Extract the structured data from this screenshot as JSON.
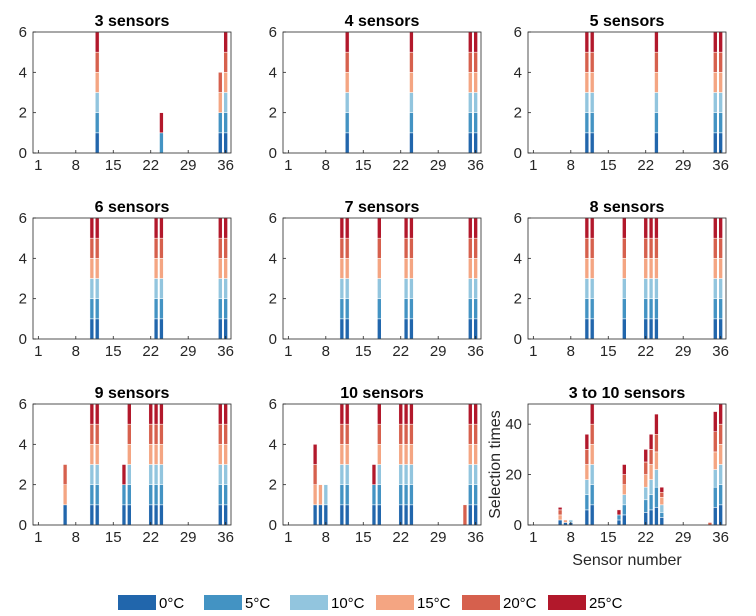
{
  "colors": {
    "0°C": "#2166ac",
    "5°C": "#4393c3",
    "10°C": "#92c5de",
    "15°C": "#f4a582",
    "20°C": "#d6604d",
    "25°C": "#b2182b",
    "frame": "#262626"
  },
  "legend": {
    "placement": "bottom",
    "entries": [
      "0°C",
      "5°C",
      "10°C",
      "15°C",
      "20°C",
      "25°C"
    ]
  },
  "chart_data": [
    {
      "type": "bar",
      "stacked": true,
      "title": "3 sensors",
      "xlabel": "",
      "ylabel": "",
      "xticks": [
        "1",
        "8",
        "15",
        "22",
        "29",
        "36"
      ],
      "yticks": [
        "0",
        "2",
        "4",
        "6"
      ],
      "xlim": [
        0,
        37
      ],
      "ylim": [
        0,
        6
      ],
      "grid": false,
      "series_names": [
        "0°C",
        "5°C",
        "10°C",
        "15°C",
        "20°C",
        "25°C"
      ],
      "bars": [
        {
          "x": 12,
          "values": [
            1,
            1,
            1,
            1,
            1,
            1
          ]
        },
        {
          "x": 24,
          "values": [
            0,
            1,
            0,
            0,
            0,
            1
          ]
        },
        {
          "x": 35,
          "values": [
            1,
            1,
            0,
            1,
            1,
            0
          ]
        },
        {
          "x": 36,
          "values": [
            1,
            1,
            1,
            1,
            1,
            1
          ]
        }
      ]
    },
    {
      "type": "bar",
      "stacked": true,
      "title": "4 sensors",
      "xlabel": "",
      "ylabel": "",
      "xticks": [
        "1",
        "8",
        "15",
        "22",
        "29",
        "36"
      ],
      "yticks": [
        "0",
        "2",
        "4",
        "6"
      ],
      "xlim": [
        0,
        37
      ],
      "ylim": [
        0,
        6
      ],
      "grid": false,
      "series_names": [
        "0°C",
        "5°C",
        "10°C",
        "15°C",
        "20°C",
        "25°C"
      ],
      "bars": [
        {
          "x": 12,
          "values": [
            1,
            1,
            1,
            1,
            1,
            1
          ]
        },
        {
          "x": 24,
          "values": [
            1,
            1,
            1,
            1,
            1,
            1
          ]
        },
        {
          "x": 35,
          "values": [
            1,
            1,
            1,
            1,
            1,
            1
          ]
        },
        {
          "x": 36,
          "values": [
            1,
            1,
            1,
            1,
            1,
            1
          ]
        }
      ]
    },
    {
      "type": "bar",
      "stacked": true,
      "title": "5 sensors",
      "xlabel": "",
      "ylabel": "",
      "xticks": [
        "1",
        "8",
        "15",
        "22",
        "29",
        "36"
      ],
      "yticks": [
        "0",
        "2",
        "4",
        "6"
      ],
      "xlim": [
        0,
        37
      ],
      "ylim": [
        0,
        6
      ],
      "grid": false,
      "series_names": [
        "0°C",
        "5°C",
        "10°C",
        "15°C",
        "20°C",
        "25°C"
      ],
      "bars": [
        {
          "x": 11,
          "values": [
            1,
            1,
            1,
            1,
            1,
            1
          ]
        },
        {
          "x": 12,
          "values": [
            1,
            1,
            1,
            1,
            1,
            1
          ]
        },
        {
          "x": 24,
          "values": [
            1,
            1,
            1,
            1,
            1,
            1
          ]
        },
        {
          "x": 35,
          "values": [
            1,
            1,
            1,
            1,
            1,
            1
          ]
        },
        {
          "x": 36,
          "values": [
            1,
            1,
            1,
            1,
            1,
            1
          ]
        }
      ]
    },
    {
      "type": "bar",
      "stacked": true,
      "title": "6 sensors",
      "xlabel": "",
      "ylabel": "",
      "xticks": [
        "1",
        "8",
        "15",
        "22",
        "29",
        "36"
      ],
      "yticks": [
        "0",
        "2",
        "4",
        "6"
      ],
      "xlim": [
        0,
        37
      ],
      "ylim": [
        0,
        6
      ],
      "grid": false,
      "series_names": [
        "0°C",
        "5°C",
        "10°C",
        "15°C",
        "20°C",
        "25°C"
      ],
      "bars": [
        {
          "x": 11,
          "values": [
            1,
            1,
            1,
            1,
            1,
            1
          ]
        },
        {
          "x": 12,
          "values": [
            1,
            1,
            1,
            1,
            1,
            1
          ]
        },
        {
          "x": 23,
          "values": [
            1,
            1,
            1,
            1,
            1,
            1
          ]
        },
        {
          "x": 24,
          "values": [
            1,
            1,
            1,
            1,
            1,
            1
          ]
        },
        {
          "x": 35,
          "values": [
            1,
            1,
            1,
            1,
            1,
            1
          ]
        },
        {
          "x": 36,
          "values": [
            1,
            1,
            1,
            1,
            1,
            1
          ]
        }
      ]
    },
    {
      "type": "bar",
      "stacked": true,
      "title": "7 sensors",
      "xlabel": "",
      "ylabel": "",
      "xticks": [
        "1",
        "8",
        "15",
        "22",
        "29",
        "36"
      ],
      "yticks": [
        "0",
        "2",
        "4",
        "6"
      ],
      "xlim": [
        0,
        37
      ],
      "ylim": [
        0,
        6
      ],
      "grid": false,
      "series_names": [
        "0°C",
        "5°C",
        "10°C",
        "15°C",
        "20°C",
        "25°C"
      ],
      "bars": [
        {
          "x": 11,
          "values": [
            1,
            1,
            1,
            1,
            1,
            1
          ]
        },
        {
          "x": 12,
          "values": [
            1,
            1,
            1,
            1,
            1,
            1
          ]
        },
        {
          "x": 18,
          "values": [
            1,
            1,
            1,
            1,
            1,
            1
          ]
        },
        {
          "x": 23,
          "values": [
            1,
            1,
            1,
            1,
            1,
            1
          ]
        },
        {
          "x": 24,
          "values": [
            1,
            1,
            1,
            1,
            1,
            1
          ]
        },
        {
          "x": 35,
          "values": [
            1,
            1,
            1,
            1,
            1,
            1
          ]
        },
        {
          "x": 36,
          "values": [
            1,
            1,
            1,
            1,
            1,
            1
          ]
        }
      ]
    },
    {
      "type": "bar",
      "stacked": true,
      "title": "8 sensors",
      "xlabel": "",
      "ylabel": "",
      "xticks": [
        "1",
        "8",
        "15",
        "22",
        "29",
        "36"
      ],
      "yticks": [
        "0",
        "2",
        "4",
        "6"
      ],
      "xlim": [
        0,
        37
      ],
      "ylim": [
        0,
        6
      ],
      "grid": false,
      "series_names": [
        "0°C",
        "5°C",
        "10°C",
        "15°C",
        "20°C",
        "25°C"
      ],
      "bars": [
        {
          "x": 11,
          "values": [
            1,
            1,
            1,
            1,
            1,
            1
          ]
        },
        {
          "x": 12,
          "values": [
            1,
            1,
            1,
            1,
            1,
            1
          ]
        },
        {
          "x": 18,
          "values": [
            1,
            1,
            1,
            1,
            1,
            1
          ]
        },
        {
          "x": 22,
          "values": [
            1,
            1,
            1,
            1,
            1,
            1
          ]
        },
        {
          "x": 23,
          "values": [
            1,
            1,
            1,
            1,
            1,
            1
          ]
        },
        {
          "x": 24,
          "values": [
            1,
            1,
            1,
            1,
            1,
            1
          ]
        },
        {
          "x": 35,
          "values": [
            1,
            1,
            1,
            1,
            1,
            1
          ]
        },
        {
          "x": 36,
          "values": [
            1,
            1,
            1,
            1,
            1,
            1
          ]
        }
      ]
    },
    {
      "type": "bar",
      "stacked": true,
      "title": "9 sensors",
      "xlabel": "",
      "ylabel": "",
      "xticks": [
        "1",
        "8",
        "15",
        "22",
        "29",
        "36"
      ],
      "yticks": [
        "0",
        "2",
        "4",
        "6"
      ],
      "xlim": [
        0,
        37
      ],
      "ylim": [
        0,
        6
      ],
      "grid": false,
      "series_names": [
        "0°C",
        "5°C",
        "10°C",
        "15°C",
        "20°C",
        "25°C"
      ],
      "bars": [
        {
          "x": 6,
          "values": [
            1,
            0,
            0,
            1,
            1,
            0
          ]
        },
        {
          "x": 11,
          "values": [
            1,
            1,
            1,
            1,
            1,
            1
          ]
        },
        {
          "x": 12,
          "values": [
            1,
            1,
            1,
            1,
            1,
            1
          ]
        },
        {
          "x": 17,
          "values": [
            1,
            1,
            0,
            0,
            0,
            1
          ]
        },
        {
          "x": 18,
          "values": [
            1,
            1,
            1,
            1,
            1,
            1
          ]
        },
        {
          "x": 22,
          "values": [
            1,
            1,
            1,
            1,
            1,
            1
          ]
        },
        {
          "x": 23,
          "values": [
            1,
            1,
            1,
            1,
            1,
            1
          ]
        },
        {
          "x": 24,
          "values": [
            1,
            1,
            1,
            1,
            1,
            1
          ]
        },
        {
          "x": 35,
          "values": [
            1,
            1,
            1,
            1,
            1,
            1
          ]
        },
        {
          "x": 36,
          "values": [
            1,
            1,
            1,
            1,
            1,
            1
          ]
        }
      ]
    },
    {
      "type": "bar",
      "stacked": true,
      "title": "10 sensors",
      "xlabel": "",
      "ylabel": "",
      "xticks": [
        "1",
        "8",
        "15",
        "22",
        "29",
        "36"
      ],
      "yticks": [
        "0",
        "2",
        "4",
        "6"
      ],
      "xlim": [
        0,
        37
      ],
      "ylim": [
        0,
        6
      ],
      "grid": false,
      "series_names": [
        "0°C",
        "5°C",
        "10°C",
        "15°C",
        "20°C",
        "25°C"
      ],
      "bars": [
        {
          "x": 6,
          "values": [
            1,
            0,
            0,
            1,
            1,
            1
          ]
        },
        {
          "x": 7,
          "values": [
            1,
            0,
            0,
            1,
            0,
            0
          ]
        },
        {
          "x": 8,
          "values": [
            1,
            0,
            1,
            0,
            0,
            0
          ]
        },
        {
          "x": 11,
          "values": [
            1,
            1,
            1,
            1,
            1,
            1
          ]
        },
        {
          "x": 12,
          "values": [
            1,
            1,
            1,
            1,
            1,
            1
          ]
        },
        {
          "x": 17,
          "values": [
            1,
            1,
            0,
            0,
            0,
            1
          ]
        },
        {
          "x": 18,
          "values": [
            1,
            1,
            1,
            1,
            1,
            1
          ]
        },
        {
          "x": 22,
          "values": [
            1,
            1,
            1,
            1,
            1,
            1
          ]
        },
        {
          "x": 23,
          "values": [
            1,
            1,
            1,
            1,
            1,
            1
          ]
        },
        {
          "x": 24,
          "values": [
            1,
            1,
            1,
            1,
            1,
            1
          ]
        },
        {
          "x": 34,
          "values": [
            0,
            0,
            0,
            0,
            1,
            0
          ]
        },
        {
          "x": 35,
          "values": [
            1,
            1,
            1,
            1,
            1,
            1
          ]
        },
        {
          "x": 36,
          "values": [
            1,
            1,
            1,
            1,
            1,
            1
          ]
        }
      ]
    },
    {
      "type": "bar",
      "stacked": true,
      "title": "3 to 10 sensors",
      "xlabel": "Sensor number",
      "ylabel": "Selection times",
      "xticks": [
        "1",
        "8",
        "15",
        "22",
        "29",
        "36"
      ],
      "yticks": [
        "0",
        "20",
        "40"
      ],
      "xlim": [
        0,
        37
      ],
      "ylim": [
        0,
        48
      ],
      "grid": false,
      "series_names": [
        "0°C",
        "5°C",
        "10°C",
        "15°C",
        "20°C",
        "25°C"
      ],
      "bars": [
        {
          "x": 6,
          "values": [
            2,
            0,
            0,
            2,
            2,
            1
          ]
        },
        {
          "x": 7,
          "values": [
            1,
            0,
            0,
            1,
            0,
            0
          ]
        },
        {
          "x": 8,
          "values": [
            1,
            0,
            1,
            0,
            0,
            0
          ]
        },
        {
          "x": 11,
          "values": [
            6,
            6,
            6,
            6,
            6,
            6
          ]
        },
        {
          "x": 12,
          "values": [
            8,
            8,
            8,
            8,
            8,
            8
          ]
        },
        {
          "x": 17,
          "values": [
            2,
            2,
            0,
            0,
            0,
            2
          ]
        },
        {
          "x": 18,
          "values": [
            4,
            4,
            4,
            4,
            4,
            4
          ]
        },
        {
          "x": 22,
          "values": [
            5,
            5,
            5,
            5,
            5,
            5
          ]
        },
        {
          "x": 23,
          "values": [
            6,
            6,
            6,
            6,
            6,
            6
          ]
        },
        {
          "x": 24,
          "values": [
            7,
            8,
            7,
            7,
            7,
            8
          ]
        },
        {
          "x": 25,
          "values": [
            3,
            2,
            3,
            3,
            2,
            2
          ]
        },
        {
          "x": 34,
          "values": [
            0,
            0,
            0,
            0,
            1,
            0
          ]
        },
        {
          "x": 35,
          "values": [
            7,
            8,
            7,
            7,
            8,
            8
          ]
        },
        {
          "x": 36,
          "values": [
            8,
            8,
            8,
            8,
            8,
            8
          ]
        }
      ]
    }
  ]
}
